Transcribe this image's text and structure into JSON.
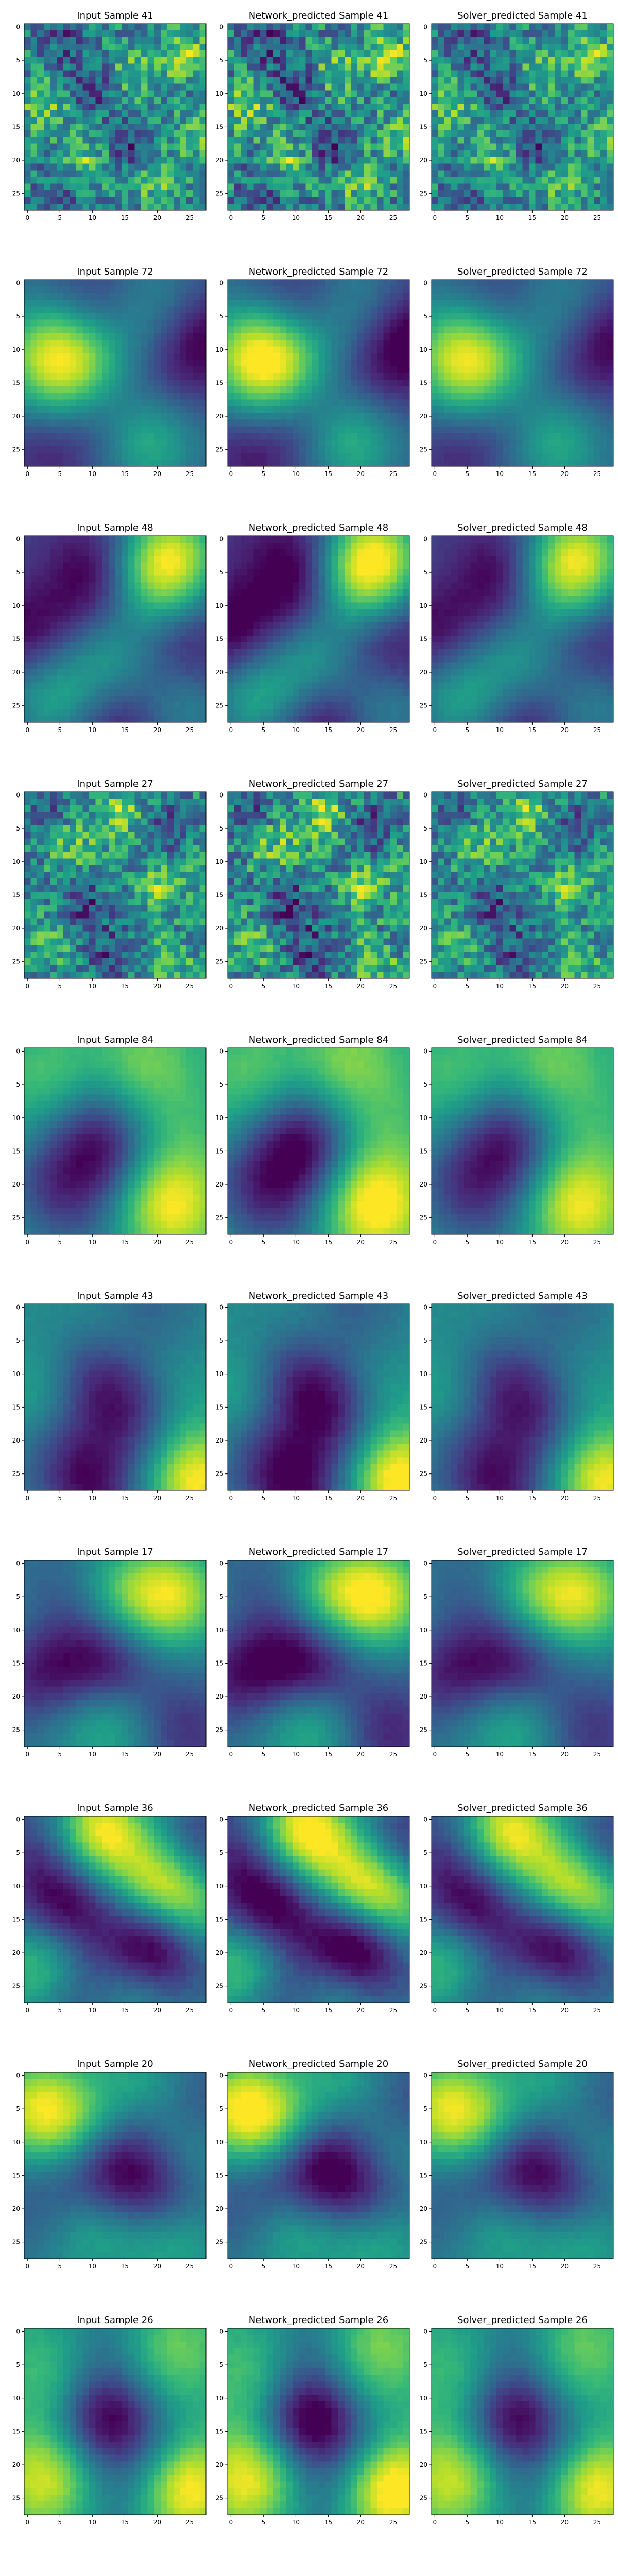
{
  "chart_data": {
    "type": "heatmap",
    "layout": "10 rows x 3 columns",
    "colormap": "viridis",
    "colormap_stops": [
      "#440154",
      "#482878",
      "#3e4989",
      "#31688e",
      "#26828e",
      "#1f9e89",
      "#35b779",
      "#6ece58",
      "#b5de2b",
      "#fde725"
    ],
    "grid": false,
    "xlim": [
      0,
      27
    ],
    "ylim": [
      27,
      0
    ],
    "x_ticks": [
      0,
      5,
      10,
      15,
      20,
      25
    ],
    "y_ticks": [
      0,
      5,
      10,
      15,
      20,
      25
    ],
    "column_title_prefixes": [
      "Input Sample",
      "Network_predicted Sample",
      "Solver_predicted Sample"
    ],
    "rows": [
      {
        "sample": 41,
        "titles": [
          "Input Sample 41",
          "Network_predicted Sample 41",
          "Solver_predicted Sample 41"
        ],
        "pattern": "fine",
        "blobs": [
          [
            4,
            24,
            0.9
          ],
          [
            7,
            16,
            0.7
          ],
          [
            12,
            3,
            0.8
          ],
          [
            20,
            9,
            0.75
          ],
          [
            23,
            20,
            0.7
          ],
          [
            16,
            26,
            0.6
          ],
          [
            9,
            10,
            -0.8
          ],
          [
            18,
            15,
            -0.7
          ],
          [
            2,
            6,
            -0.6
          ],
          [
            25,
            5,
            -0.5
          ]
        ]
      },
      {
        "sample": 72,
        "titles": [
          "Input Sample 72",
          "Network_predicted Sample 72",
          "Solver_predicted Sample 72"
        ],
        "pattern": "smooth",
        "blobs": [
          [
            10,
            3,
            1.0
          ],
          [
            12,
            9,
            0.8
          ],
          [
            23,
            18,
            0.9
          ],
          [
            4,
            20,
            0.5
          ],
          [
            17,
            5,
            0.4
          ],
          [
            8,
            27,
            -0.8
          ],
          [
            20,
            12,
            -0.5
          ],
          [
            3,
            10,
            -0.4
          ],
          [
            26,
            3,
            -0.5
          ],
          [
            15,
            22,
            -0.3
          ]
        ]
      },
      {
        "sample": 48,
        "titles": [
          "Input Sample 48",
          "Network_predicted Sample 48",
          "Solver_predicted Sample 48"
        ],
        "pattern": "smooth",
        "blobs": [
          [
            2,
            23,
            1.0
          ],
          [
            6,
            19,
            0.8
          ],
          [
            10,
            2,
            0.6
          ],
          [
            18,
            13,
            0.6
          ],
          [
            24,
            4,
            0.7
          ],
          [
            24,
            24,
            0.7
          ],
          [
            12,
            1,
            -0.9
          ],
          [
            6,
            10,
            -0.6
          ],
          [
            19,
            24,
            -0.5
          ],
          [
            27,
            14,
            -0.4
          ]
        ]
      },
      {
        "sample": 27,
        "titles": [
          "Input Sample 27",
          "Network_predicted Sample 27",
          "Solver_predicted Sample 27"
        ],
        "pattern": "fine",
        "blobs": [
          [
            3,
            14,
            0.9
          ],
          [
            8,
            7,
            0.7
          ],
          [
            14,
            20,
            0.8
          ],
          [
            22,
            3,
            0.6
          ],
          [
            25,
            22,
            0.7
          ],
          [
            10,
            25,
            0.5
          ],
          [
            6,
            22,
            -0.7
          ],
          [
            17,
            9,
            -0.8
          ],
          [
            24,
            13,
            -0.6
          ],
          [
            1,
            3,
            -0.5
          ]
        ]
      },
      {
        "sample": 84,
        "titles": [
          "Input Sample 84",
          "Network_predicted Sample 84",
          "Solver_predicted Sample 84"
        ],
        "pattern": "smooth",
        "blobs": [
          [
            23,
            22,
            1.0
          ],
          [
            2,
            18,
            0.5
          ],
          [
            4,
            4,
            0.4
          ],
          [
            15,
            11,
            -1.0
          ],
          [
            20,
            3,
            -0.6
          ],
          [
            8,
            10,
            -0.3
          ],
          [
            12,
            24,
            0.2
          ],
          [
            26,
            8,
            -0.4
          ]
        ]
      },
      {
        "sample": 43,
        "titles": [
          "Input Sample 43",
          "Network_predicted Sample 43",
          "Solver_predicted Sample 43"
        ],
        "pattern": "smooth",
        "blobs": [
          [
            26,
            26,
            1.0
          ],
          [
            5,
            14,
            0.4
          ],
          [
            13,
            2,
            0.3
          ],
          [
            14,
            22,
            0.3
          ],
          [
            10,
            11,
            -0.7
          ],
          [
            16,
            17,
            -0.6
          ],
          [
            27,
            10,
            -0.7
          ],
          [
            1,
            18,
            -0.4
          ],
          [
            21,
            5,
            -0.3
          ]
        ]
      },
      {
        "sample": 17,
        "titles": [
          "Input Sample 17",
          "Network_predicted Sample 17",
          "Solver_predicted Sample 17"
        ],
        "pattern": "smooth",
        "blobs": [
          [
            5,
            23,
            1.0
          ],
          [
            5,
            15,
            0.7
          ],
          [
            12,
            0,
            0.6
          ],
          [
            24,
            12,
            0.6
          ],
          [
            15,
            1,
            -1.0
          ],
          [
            15,
            12,
            -0.8
          ],
          [
            25,
            24,
            -0.5
          ],
          [
            6,
            6,
            -0.3
          ]
        ]
      },
      {
        "sample": 36,
        "titles": [
          "Input Sample 36",
          "Network_predicted Sample 36",
          "Solver_predicted Sample 36"
        ],
        "pattern": "smooth",
        "blobs": [
          [
            2,
            11,
            0.9
          ],
          [
            10,
            21,
            0.9
          ],
          [
            14,
            25,
            0.6
          ],
          [
            22,
            3,
            0.7
          ],
          [
            26,
            15,
            0.4
          ],
          [
            18,
            20,
            -1.0
          ],
          [
            13,
            6,
            -0.6
          ],
          [
            6,
            26,
            -0.5
          ],
          [
            25,
            8,
            -0.5
          ],
          [
            4,
            2,
            -0.3
          ]
        ]
      },
      {
        "sample": 20,
        "titles": [
          "Input Sample 20",
          "Network_predicted Sample 20",
          "Solver_predicted Sample 20"
        ],
        "pattern": "smooth",
        "blobs": [
          [
            5,
            2,
            1.0
          ],
          [
            9,
            10,
            0.7
          ],
          [
            22,
            9,
            0.6
          ],
          [
            12,
            23,
            0.6
          ],
          [
            24,
            22,
            0.5
          ],
          [
            2,
            18,
            0.5
          ],
          [
            14,
            12,
            -0.9
          ],
          [
            17,
            21,
            -0.8
          ],
          [
            8,
            16,
            -0.5
          ],
          [
            20,
            4,
            -0.4
          ],
          [
            4,
            26,
            -0.4
          ]
        ]
      },
      {
        "sample": 26,
        "titles": [
          "Input Sample 26",
          "Network_predicted Sample 26",
          "Solver_predicted Sample 26"
        ],
        "pattern": "smooth",
        "blobs": [
          [
            23,
            24,
            1.0
          ],
          [
            22,
            3,
            0.7
          ],
          [
            3,
            22,
            0.4
          ],
          [
            7,
            4,
            0.3
          ],
          [
            13,
            12,
            -1.0
          ],
          [
            19,
            20,
            -0.4
          ],
          [
            1,
            12,
            -0.3
          ],
          [
            27,
            14,
            -0.3
          ]
        ]
      }
    ]
  }
}
